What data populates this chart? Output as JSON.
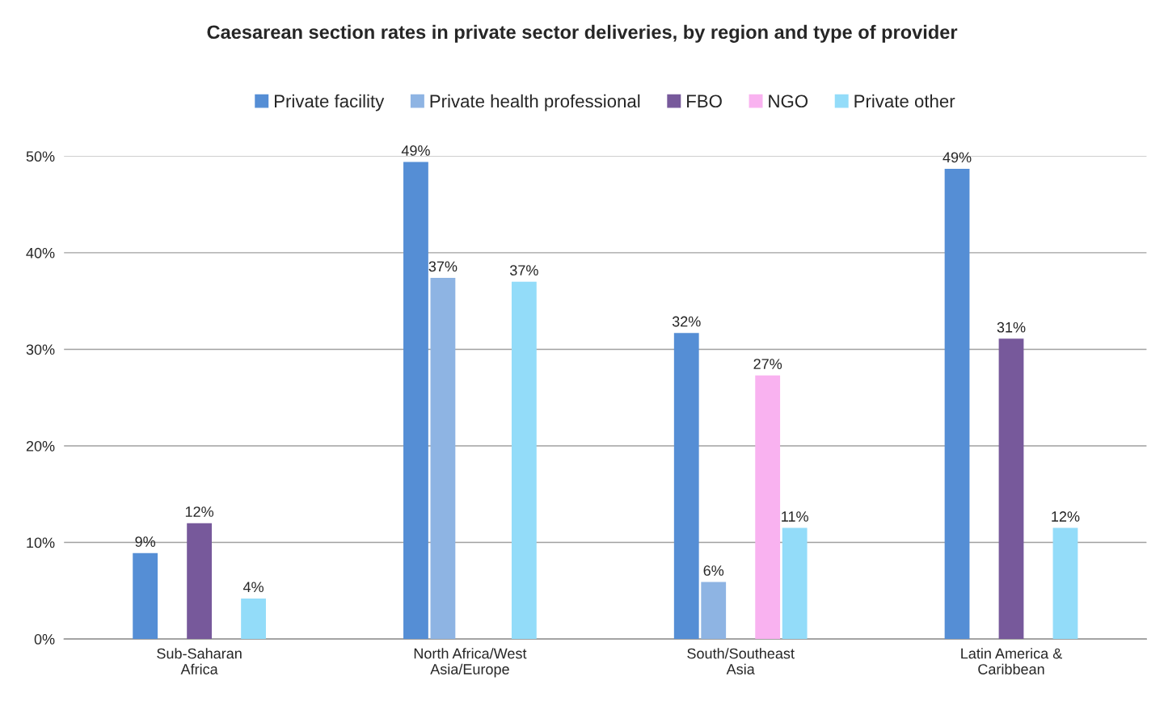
{
  "chart_data": {
    "type": "bar",
    "title": "Caesarean section rates in private sector deliveries, by region and type of provider",
    "categories": [
      "Sub-Saharan\nAfrica",
      "North Africa/West\nAsia/Europe",
      "South/Southeast\nAsia",
      "Latin America &\nCaribbean"
    ],
    "series": [
      {
        "name": "Private facility",
        "color": "#558ed5",
        "values": [
          8.9,
          49.4,
          31.7,
          48.7
        ],
        "value_labels": [
          "9%",
          "49%",
          "32%",
          "49%"
        ]
      },
      {
        "name": "Private health professional",
        "color": "#8eb4e3",
        "values": [
          null,
          37.4,
          5.9,
          null
        ],
        "value_labels": [
          null,
          "37%",
          "6%",
          null
        ]
      },
      {
        "name": "FBO",
        "color": "#77599b",
        "values": [
          12.0,
          null,
          null,
          31.1
        ],
        "value_labels": [
          "12%",
          null,
          null,
          "31%"
        ]
      },
      {
        "name": "NGO",
        "color": "#f9b2f0",
        "values": [
          null,
          null,
          27.3,
          null
        ],
        "value_labels": [
          null,
          null,
          "27%",
          null
        ]
      },
      {
        "name": "Private other",
        "color": "#93dcf9",
        "values": [
          4.2,
          37.0,
          11.5,
          11.5
        ],
        "value_labels": [
          "4%",
          "37%",
          "11%",
          "12%"
        ]
      }
    ],
    "ylim": [
      0,
      50
    ],
    "yticks": [
      {
        "value": 0,
        "label": "0%"
      },
      {
        "value": 10,
        "label": "10%"
      },
      {
        "value": 20,
        "label": "20%"
      },
      {
        "value": 30,
        "label": "30%"
      },
      {
        "value": 40,
        "label": "40%"
      },
      {
        "value": 50,
        "label": "50%"
      }
    ],
    "grid": "y",
    "legend": "top"
  }
}
